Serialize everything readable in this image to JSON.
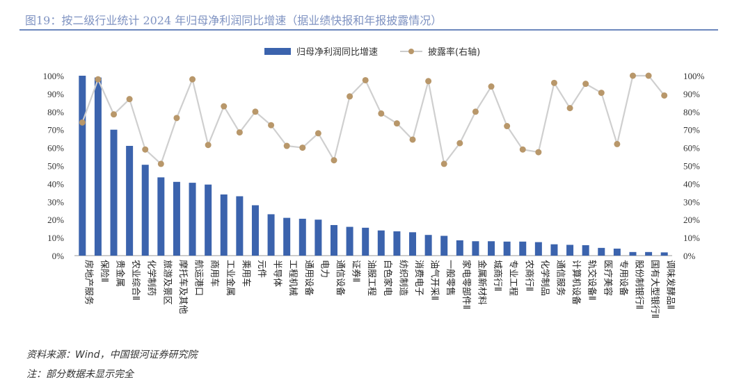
{
  "title": "图19：按二级行业统计 2024 年归母净利润同比增速（据业绩快报和年报披露情况）",
  "footer": {
    "source": "资料来源：Wind，中国银河证券研究院",
    "note": "注：部分数据未显示完全"
  },
  "chart_data": {
    "type": "bar",
    "title": "按二级行业统计 2024 年归母净利润同比增速",
    "legend": [
      "归母净利润同比增速",
      "披露率(右轴)"
    ],
    "legend_position": "top",
    "ylim": [
      0,
      100
    ],
    "y2lim": [
      0,
      100
    ],
    "yticks": [
      "0%",
      "10%",
      "20%",
      "30%",
      "40%",
      "50%",
      "60%",
      "70%",
      "80%",
      "90%",
      "100%"
    ],
    "categories": [
      "房地产服务",
      "保险Ⅱ",
      "贵金属",
      "农业综合Ⅱ",
      "化学制药",
      "旅游及景区",
      "摩托车及其他",
      "航运港口",
      "商用车",
      "工业金属",
      "乘用车",
      "元件",
      "半导体",
      "工程机械",
      "通用设备",
      "电力",
      "通信设备",
      "证券Ⅱ",
      "油服工程",
      "白色家电",
      "纺织制造",
      "消费电子",
      "油气开采Ⅱ",
      "一般零售",
      "家电零部件Ⅱ",
      "金属新材料",
      "城商行Ⅱ",
      "专业工程",
      "农商行Ⅱ",
      "化学制品",
      "通信服务",
      "计算机设备",
      "轨交设备Ⅱ",
      "医疗美容",
      "专用设备",
      "股份制银行Ⅱ",
      "国有大型银行Ⅱ",
      "调味发酵品Ⅱ"
    ],
    "series": [
      {
        "name": "归母净利润同比增速",
        "type": "bar",
        "color": "#3b63ad",
        "values": [
          100,
          99,
          70,
          61,
          50.5,
          43.5,
          41,
          40.5,
          39.5,
          34,
          33,
          28,
          23,
          21,
          20.5,
          20,
          17,
          16,
          15.5,
          14,
          13.5,
          13,
          11.5,
          11,
          8.5,
          8,
          8,
          7.8,
          7.8,
          7.5,
          6.3,
          6,
          5.8,
          4.3,
          3.9,
          2,
          2,
          1.8
        ]
      },
      {
        "name": "披露率(右轴)",
        "type": "line",
        "color": "#cfcfcf",
        "marker": "#b8976a",
        "values": [
          74,
          98,
          78.5,
          87,
          59,
          51,
          76.5,
          98,
          61.5,
          83,
          68.5,
          80,
          72.5,
          61,
          60,
          68,
          53,
          88.5,
          97.5,
          79,
          73.5,
          64.5,
          97,
          51,
          62.5,
          80,
          94,
          72,
          59,
          57.5,
          96,
          82,
          95.5,
          90.5,
          62,
          100,
          100,
          89
        ]
      }
    ]
  }
}
